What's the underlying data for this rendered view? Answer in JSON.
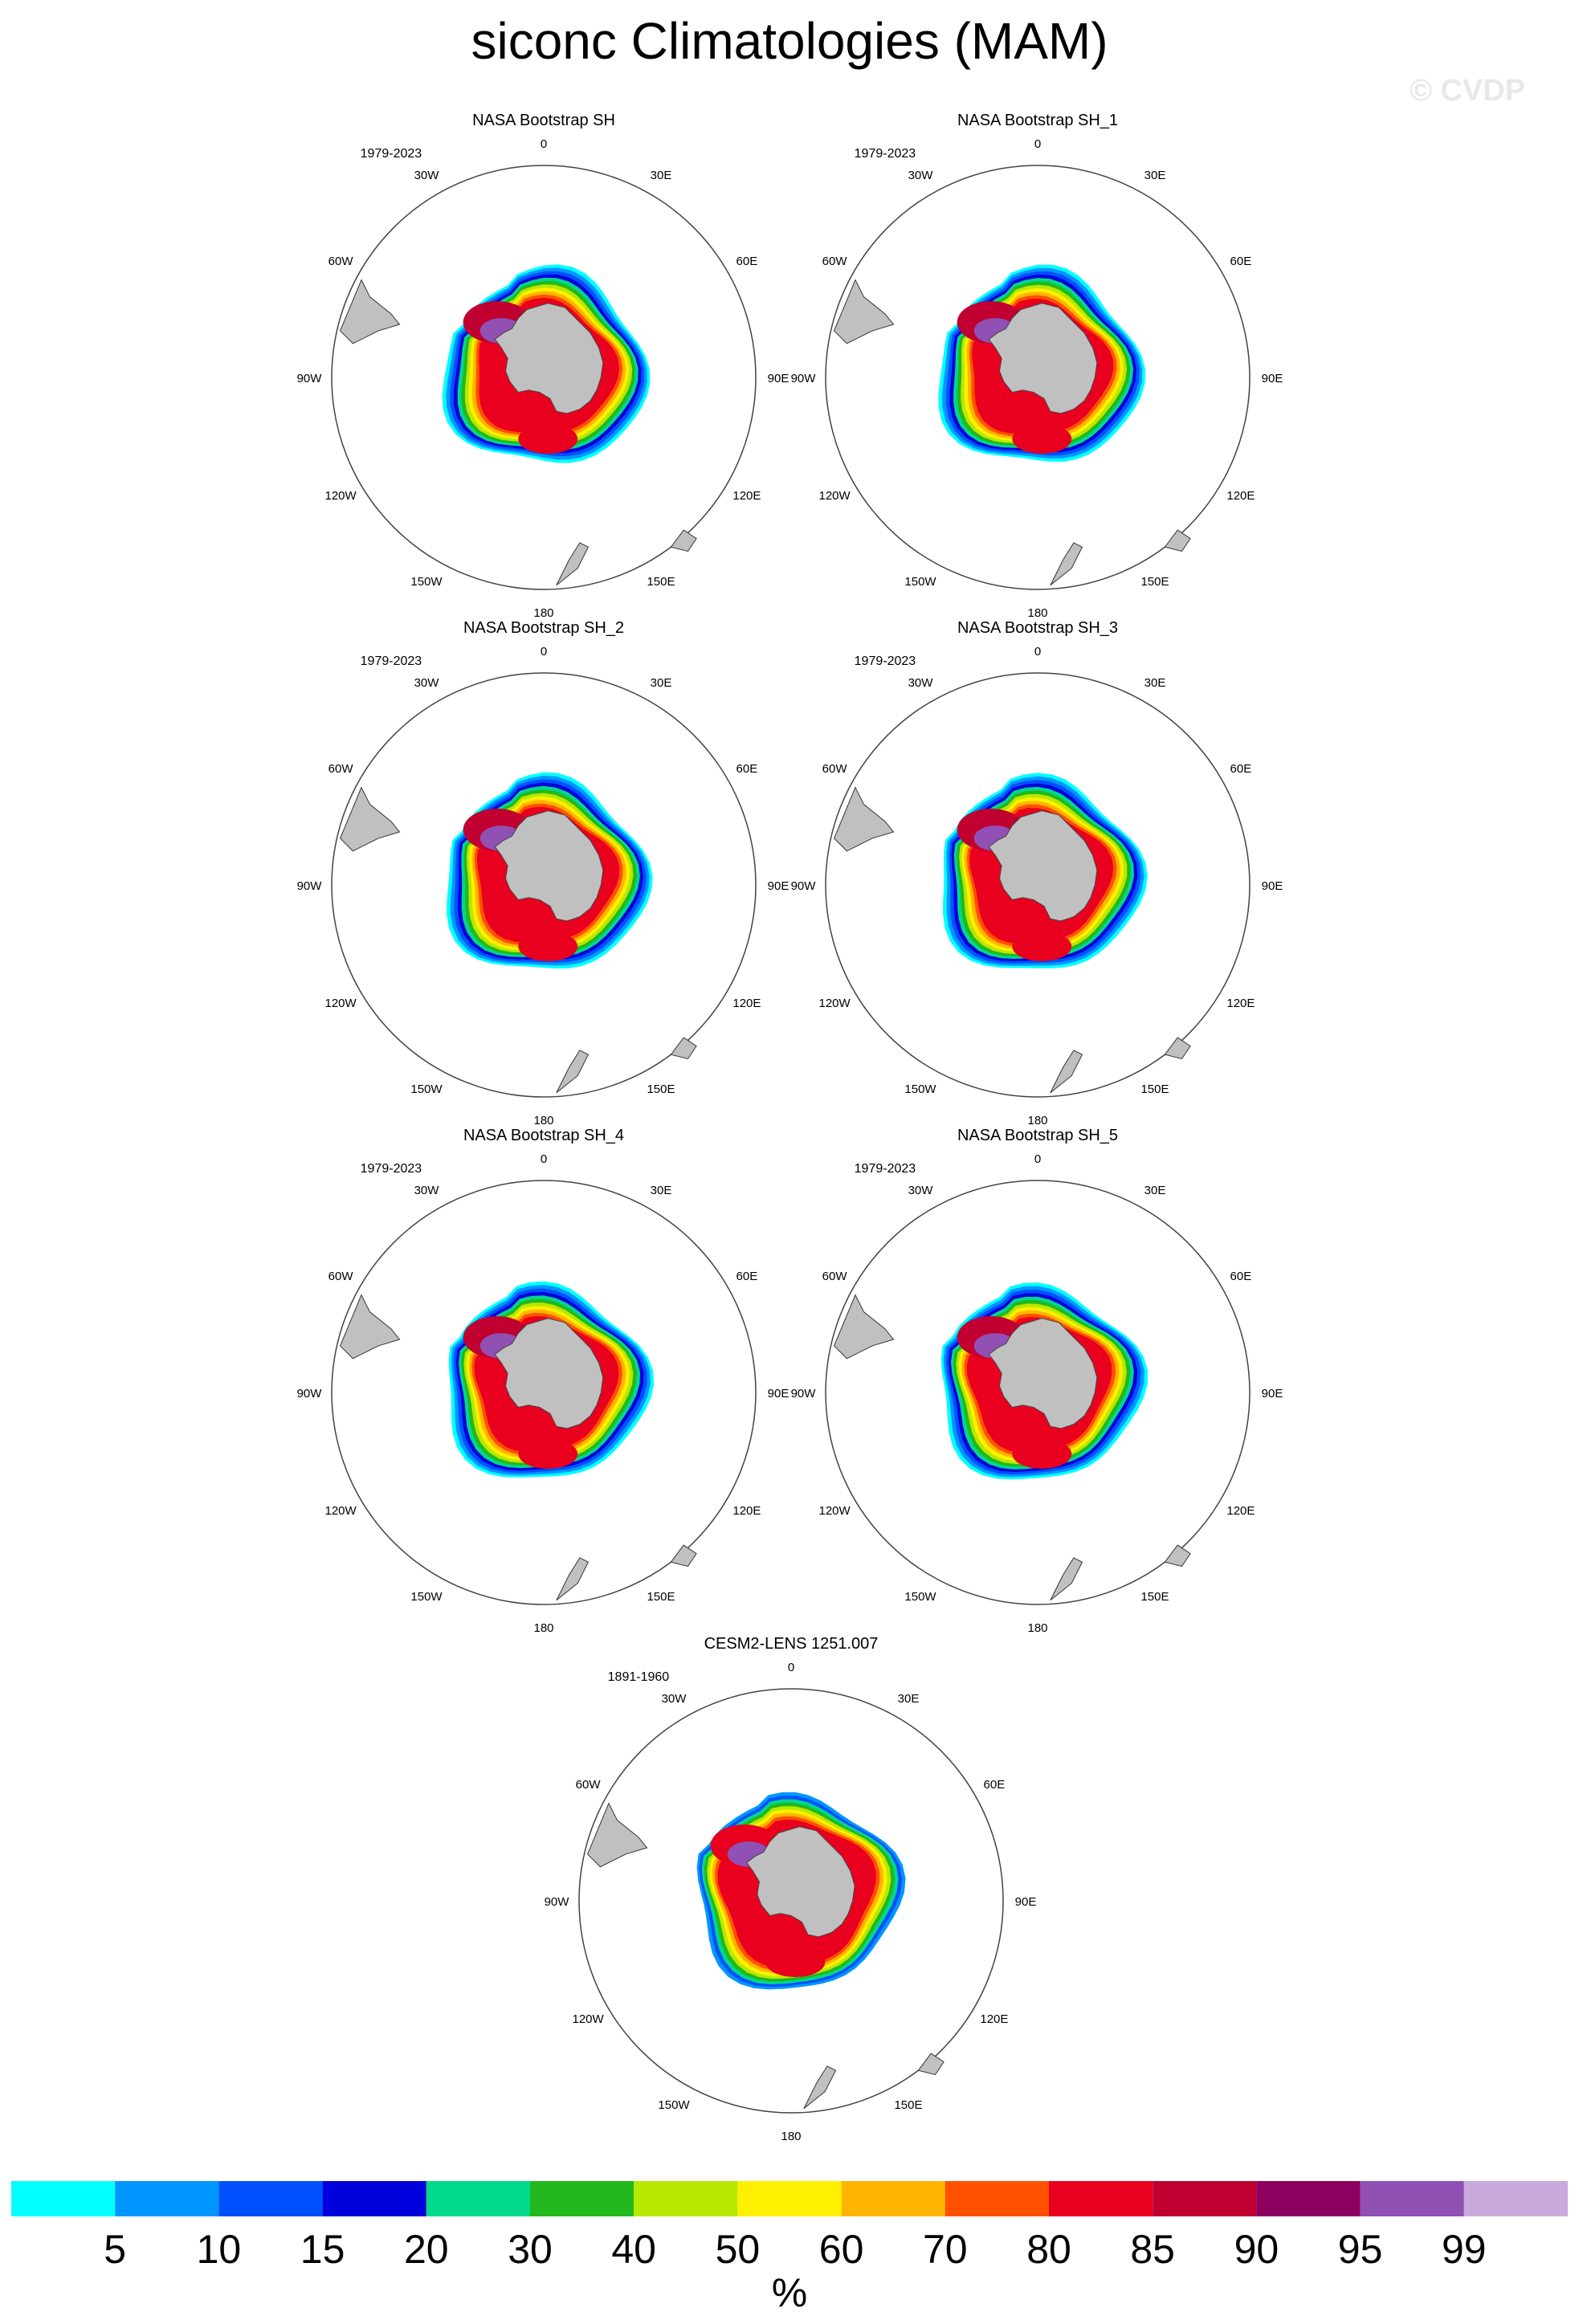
{
  "figure": {
    "title": "siconc Climatologies (MAM)",
    "watermark": "© CVDP"
  },
  "panels": [
    {
      "title": "NASA Bootstrap SH",
      "period": "1979-2023",
      "model": "obs"
    },
    {
      "title": "NASA Bootstrap SH_1",
      "period": "1979-2023",
      "model": "obs"
    },
    {
      "title": "NASA Bootstrap SH_2",
      "period": "1979-2023",
      "model": "obs"
    },
    {
      "title": "NASA Bootstrap SH_3",
      "period": "1979-2023",
      "model": "obs"
    },
    {
      "title": "NASA Bootstrap SH_4",
      "period": "1979-2023",
      "model": "obs"
    },
    {
      "title": "NASA Bootstrap SH_5",
      "period": "1979-2023",
      "model": "obs"
    },
    {
      "title": "CESM2-LENS 1251.007",
      "period": "1891-1960",
      "model": "model"
    }
  ],
  "map": {
    "projection": "south-polar-stereographic",
    "longitude_labels": [
      "0",
      "30E",
      "60E",
      "90E",
      "120E",
      "150E",
      "180",
      "150W",
      "120W",
      "90W",
      "60W",
      "30W"
    ],
    "land_color": "#c0c0c0"
  },
  "colorbar": {
    "unit": "%",
    "labels": [
      "5",
      "10",
      "15",
      "20",
      "30",
      "40",
      "50",
      "60",
      "70",
      "80",
      "85",
      "90",
      "95",
      "99"
    ],
    "colors": [
      "#00ffff",
      "#0096ff",
      "#0050ff",
      "#0000dc",
      "#00d88c",
      "#22b81e",
      "#b8e800",
      "#fff000",
      "#ffb400",
      "#ff5000",
      "#e8001e",
      "#c00030",
      "#8c0060",
      "#9050b4",
      "#c8aadc"
    ]
  }
}
